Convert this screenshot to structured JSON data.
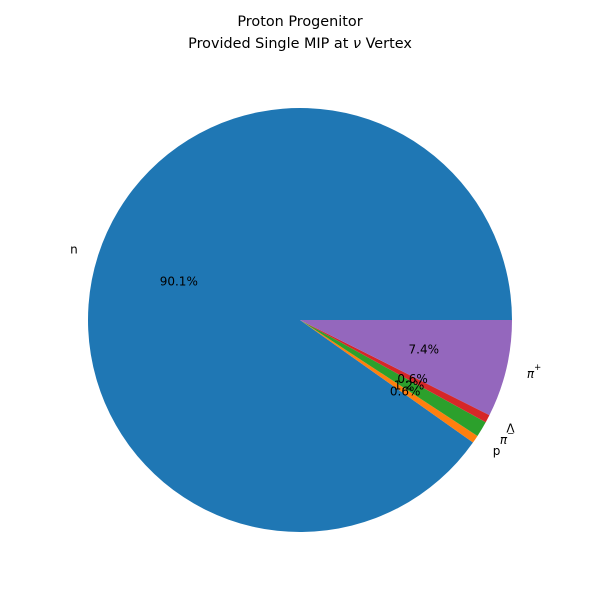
{
  "chart_data": {
    "type": "pie",
    "title_line1": "Proton Progenitor",
    "title_line2_prefix": "Provided Single MIP at ",
    "title_line2_symbol": "ν",
    "title_line2_suffix": " Vertex",
    "slices": [
      {
        "label": "n",
        "label_main": "n",
        "label_sup": "",
        "value": 90.1,
        "pct_label": "90.1%",
        "color": "#1f77b4"
      },
      {
        "label": "p",
        "label_main": "p",
        "label_sup": "",
        "value": 0.6,
        "pct_label": "0.6%",
        "color": "#ff7f0e"
      },
      {
        "label": "π-",
        "label_main": "π",
        "label_sup": "−",
        "value": 1.2,
        "pct_label": "1.2%",
        "color": "#2ca02c"
      },
      {
        "label": "Λ",
        "label_main": "Λ",
        "label_sup": "",
        "value": 0.6,
        "pct_label": "0.6%",
        "color": "#d62728"
      },
      {
        "label": "π+",
        "label_main": "π",
        "label_sup": "+",
        "value": 7.4,
        "pct_label": "7.4%",
        "color": "#9467bd"
      }
    ],
    "start_angle_deg": 0,
    "direction": "counterclockwise"
  }
}
